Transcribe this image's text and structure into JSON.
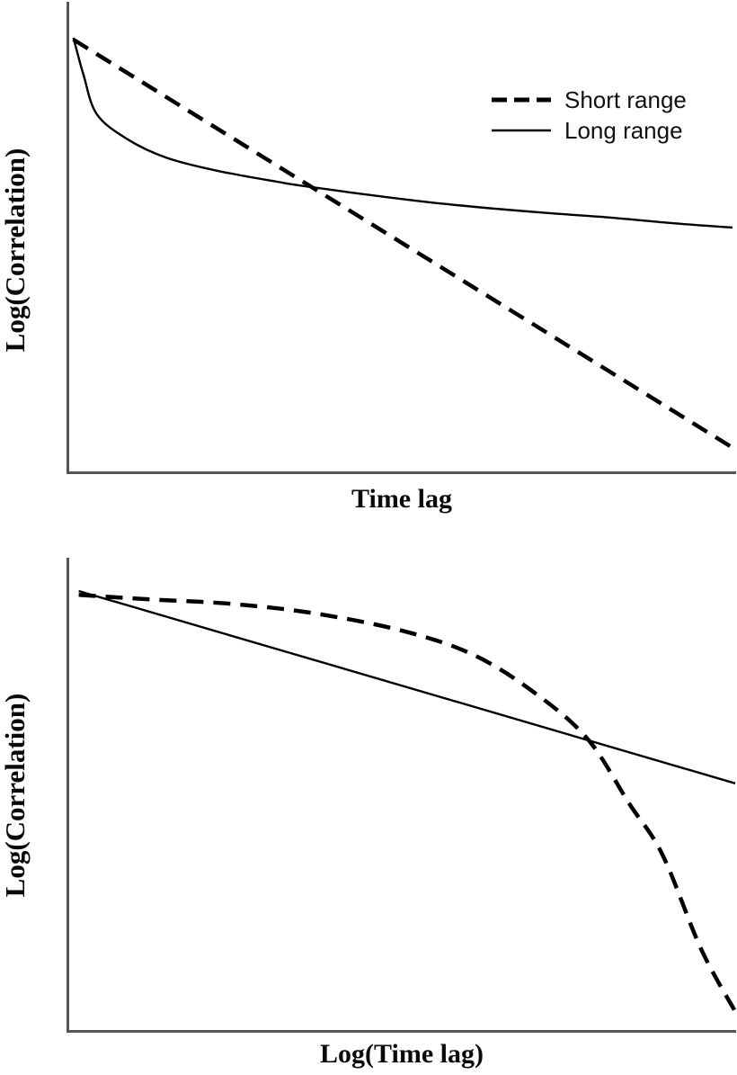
{
  "figure": {
    "background": "#ffffff",
    "line_color": "#000000",
    "axis_color": "#555555",
    "text_color": "#0a0a0a"
  },
  "chart_data": [
    {
      "type": "line",
      "title": "",
      "xlabel": "Time lag",
      "ylabel": "Log(Correlation)",
      "axis_ticks": "none (schematic axes, unlabeled)",
      "x_scale": "linear",
      "y_scale": "log (implied by axis label)",
      "grid": false,
      "legend_position": "top-right",
      "xlim": [
        0,
        1
      ],
      "ylim": [
        0,
        1
      ],
      "series": [
        {
          "name": "Short range",
          "line_style": "dashed",
          "line_width": 4.5,
          "description": "straight declining line (exponential decay appears linear on log-correlation vs linear time lag)",
          "points": [
            [
              0.009,
              0.92
            ],
            [
              0.997,
              0.055
            ]
          ]
        },
        {
          "name": "Long range",
          "line_style": "solid",
          "line_width": 2.4,
          "description": "steep initial drop then slow flattening decay (power law)",
          "points": [
            [
              0.009,
              0.924
            ],
            [
              0.024,
              0.846
            ],
            [
              0.044,
              0.762
            ],
            [
              0.09,
              0.709
            ],
            [
              0.148,
              0.67
            ],
            [
              0.225,
              0.642
            ],
            [
              0.314,
              0.619
            ],
            [
              0.354,
              0.61
            ],
            [
              0.464,
              0.589
            ],
            [
              0.572,
              0.571
            ],
            [
              0.707,
              0.554
            ],
            [
              0.814,
              0.543
            ],
            [
              0.908,
              0.531
            ],
            [
              0.996,
              0.522
            ]
          ]
        }
      ]
    },
    {
      "type": "line",
      "title": "",
      "xlabel": "Log(Time lag)",
      "ylabel": "Log(Correlation)",
      "axis_ticks": "none (schematic axes, unlabeled)",
      "x_scale": "log (implied by axis label)",
      "y_scale": "log (implied by axis label)",
      "grid": false,
      "legend_position": "none",
      "xlim": [
        0,
        1
      ],
      "ylim": [
        0,
        1
      ],
      "series": [
        {
          "name": "Short range",
          "line_style": "dashed",
          "line_width": 4.5,
          "description": "nearly flat at first, then accelerating downward plunge (exponential decay on log-log)",
          "points": [
            [
              0.017,
              0.922
            ],
            [
              0.114,
              0.913
            ],
            [
              0.245,
              0.903
            ],
            [
              0.37,
              0.883
            ],
            [
              0.505,
              0.845
            ],
            [
              0.612,
              0.793
            ],
            [
              0.707,
              0.708
            ],
            [
              0.781,
              0.615
            ],
            [
              0.841,
              0.483
            ],
            [
              0.891,
              0.375
            ],
            [
              0.949,
              0.176
            ],
            [
              0.999,
              0.047
            ]
          ]
        },
        {
          "name": "Long range",
          "line_style": "solid",
          "line_width": 2.4,
          "description": "straight declining line (power law appears linear on log-log)",
          "points": [
            [
              0.017,
              0.93
            ],
            [
              1.0,
              0.525
            ]
          ]
        }
      ]
    }
  ]
}
